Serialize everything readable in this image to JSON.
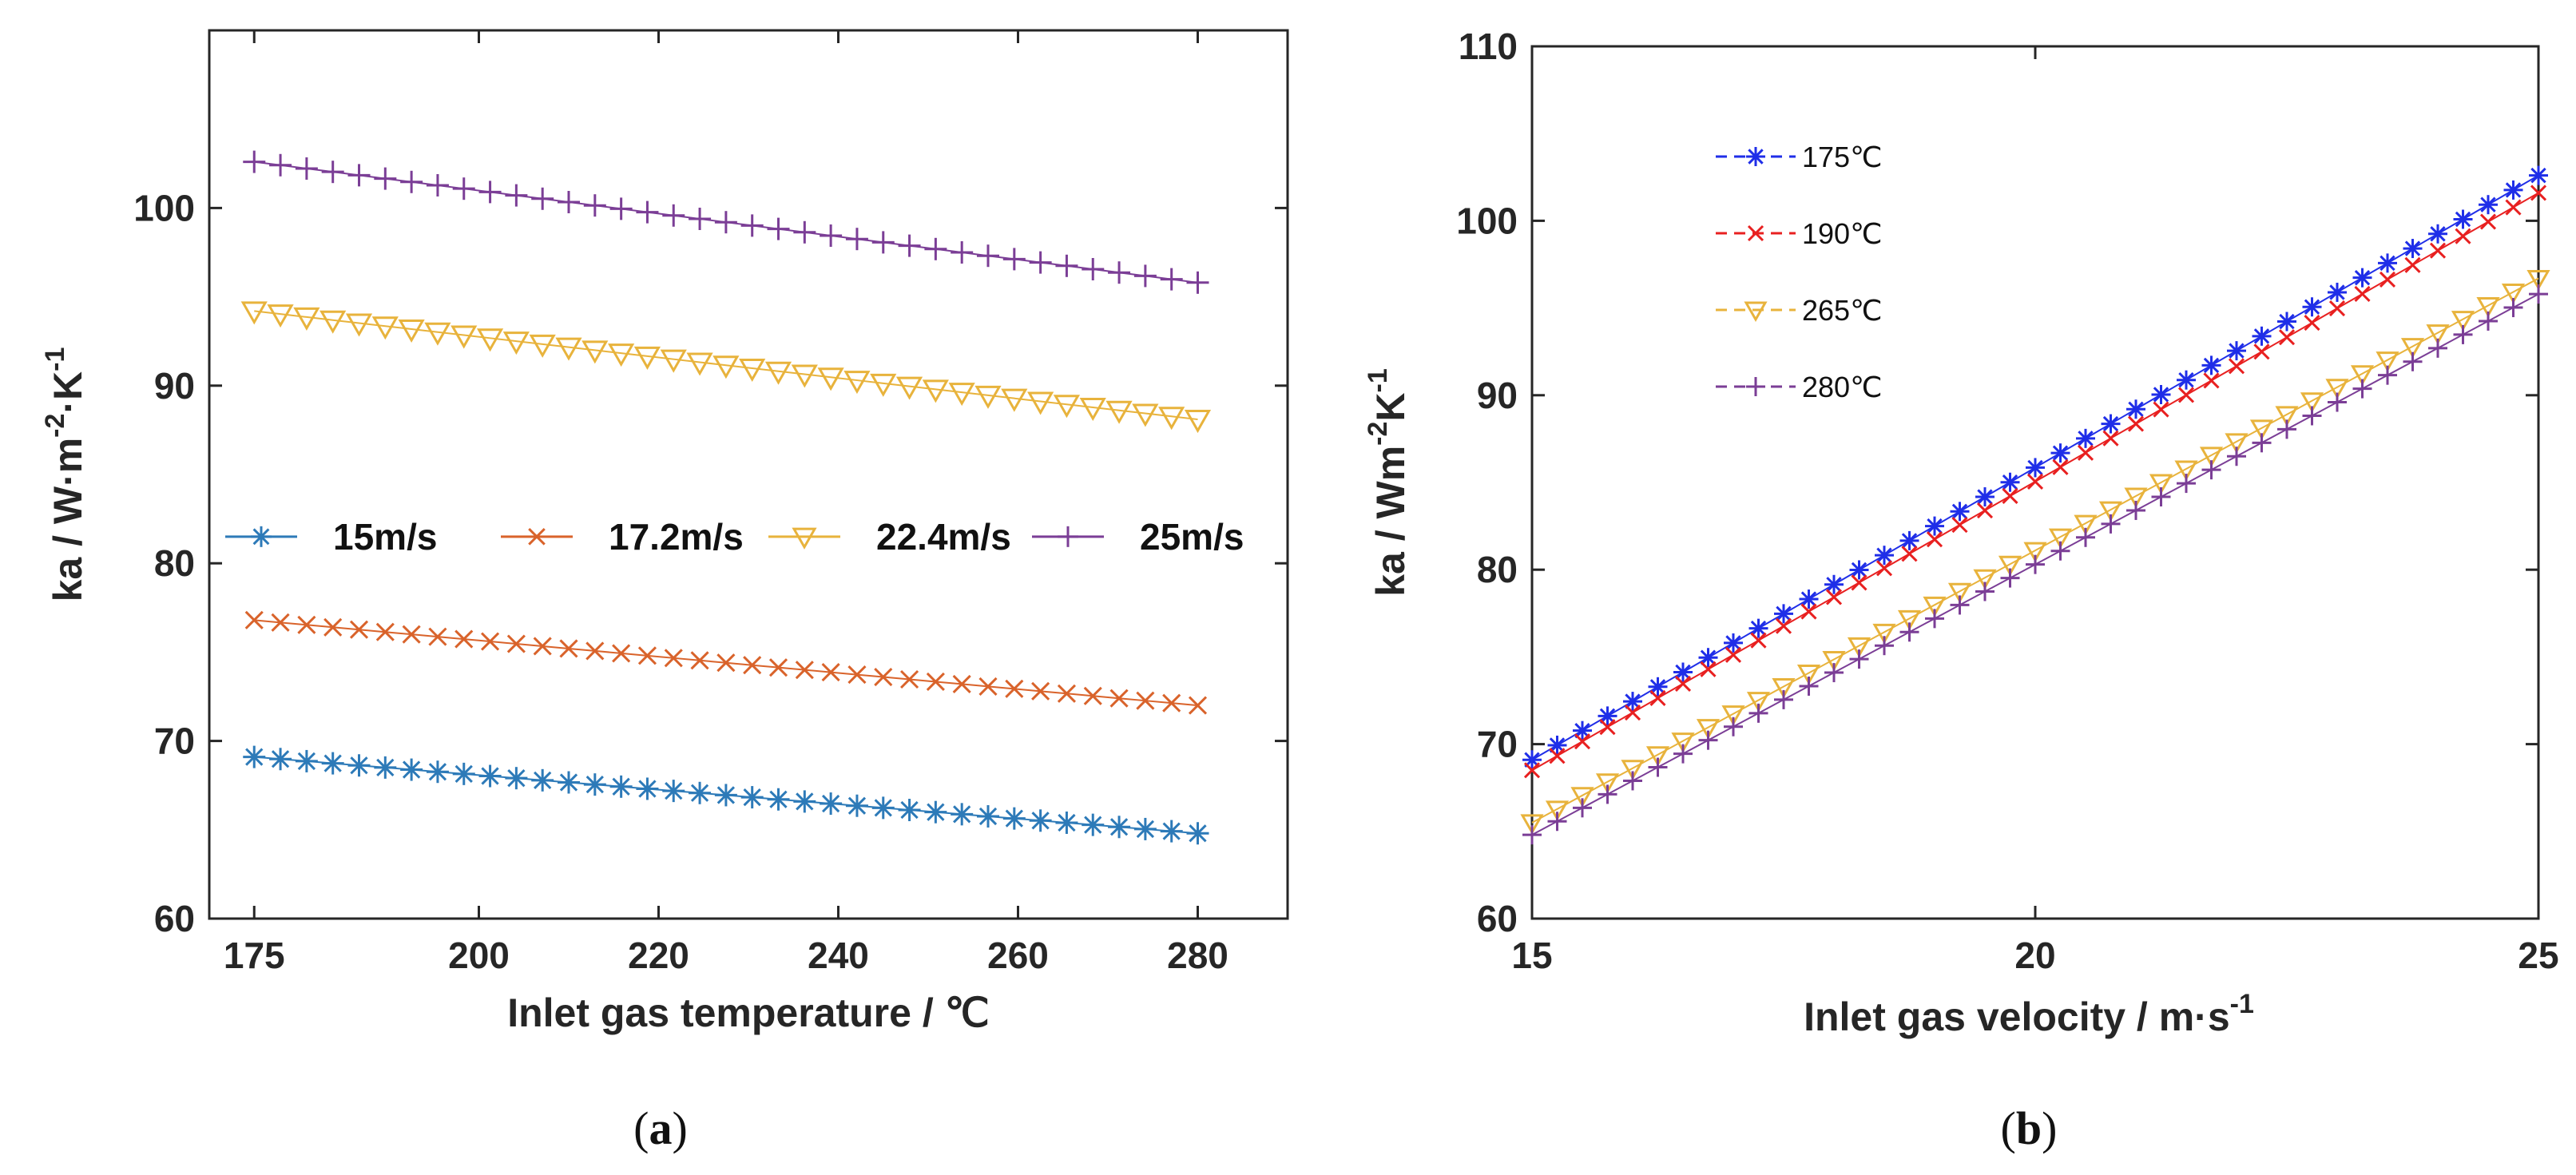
{
  "chart_data": [
    {
      "type": "line",
      "panel_label": {
        "open": "(",
        "letter": "a",
        "close": ")"
      },
      "xlabel": "Inlet gas temperature /  ℃",
      "ylabel": {
        "base": "ka / W·m",
        "sup1": "-2",
        "mid": "·K",
        "sup2": "-1"
      },
      "xlim": [
        170,
        290
      ],
      "ylim": [
        60,
        110
      ],
      "x_ticks": [
        175,
        200,
        220,
        240,
        260,
        280
      ],
      "y_ticks": [
        60,
        70,
        80,
        90,
        100
      ],
      "x_range": [
        175,
        280
      ],
      "n_points": 37,
      "legend_position": "middle, horizontal",
      "series": [
        {
          "name": "15m/s",
          "marker": "asterisk",
          "color": "#2d7ab8",
          "start": 69.1,
          "end": 64.8
        },
        {
          "name": "17.2m/s",
          "marker": "x",
          "color": "#d9632b",
          "start": 76.8,
          "end": 72.0
        },
        {
          "name": "22.4m/s",
          "marker": "triangle-down",
          "color": "#e8b33c",
          "start": 94.2,
          "end": 88.1
        },
        {
          "name": "25m/s",
          "marker": "plus",
          "color": "#7b3e96",
          "start": 102.6,
          "end": 95.8
        }
      ]
    },
    {
      "type": "line",
      "panel_label": {
        "open": "(",
        "letter": "b",
        "close": ")"
      },
      "xlabel": {
        "base": "Inlet gas velocity / m·s",
        "sup": "-1"
      },
      "ylabel": {
        "base": "ka / Wm",
        "sup1": "-2",
        "mid": "K",
        "sup2": "-1"
      },
      "xlim": [
        15,
        25
      ],
      "ylim": [
        60,
        110
      ],
      "x_ticks": [
        15,
        20,
        25
      ],
      "y_ticks": [
        60,
        70,
        80,
        90,
        100,
        110
      ],
      "x_range": [
        15,
        25
      ],
      "n_points": 41,
      "legend_position": "upper-left",
      "series": [
        {
          "name": "175℃",
          "marker": "asterisk",
          "color": "#1f2ee8",
          "start": 69.1,
          "end": 102.6
        },
        {
          "name": "190℃",
          "marker": "x",
          "color": "#e82020",
          "start": 68.5,
          "end": 101.6
        },
        {
          "name": "265℃",
          "marker": "triangle-down",
          "color": "#e8b33c",
          "start": 65.5,
          "end": 96.7
        },
        {
          "name": "280℃",
          "marker": "plus",
          "color": "#7b3e96",
          "start": 64.8,
          "end": 95.8
        }
      ]
    }
  ]
}
